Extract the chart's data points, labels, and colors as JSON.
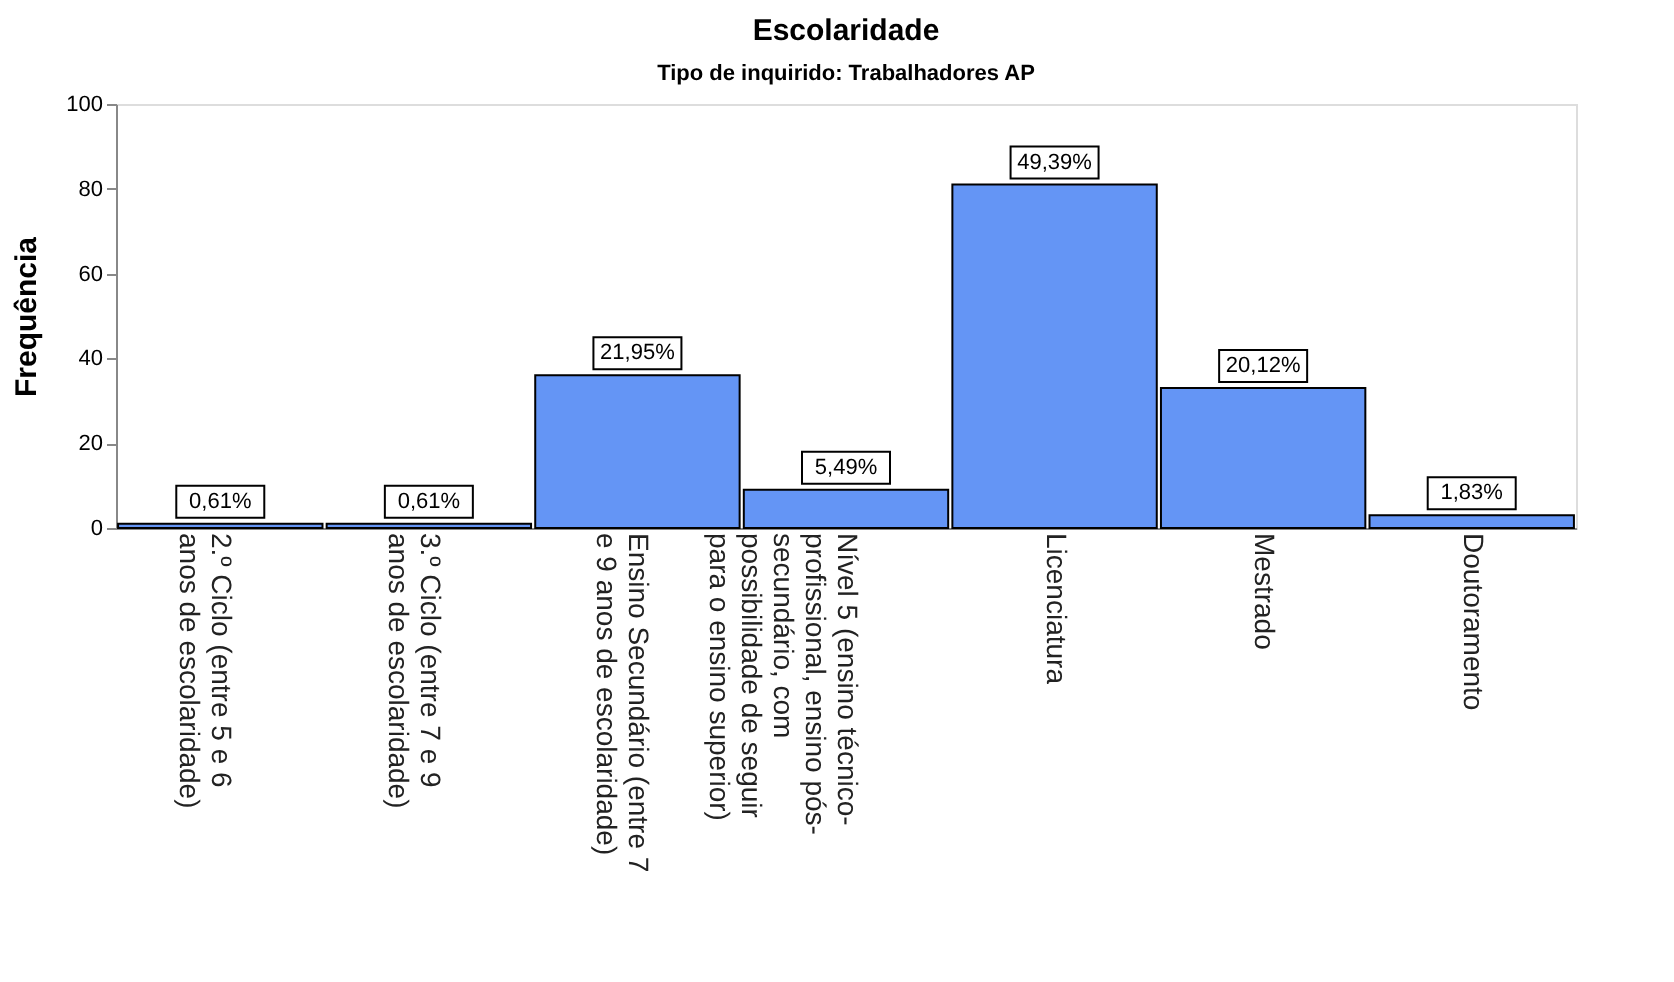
{
  "chart_data": {
    "type": "bar",
    "title": "Escolaridade",
    "subtitle": "Tipo de inquirido: Trabalhadores AP",
    "ylabel": "Frequência",
    "categories": [
      "2.º Ciclo (entre 5 e 6 anos de escolaridade)",
      "3.º Ciclo (entre 7 e 9 anos de escolaridade)",
      "Ensino Secundário (entre 7 e 9 anos de escolaridade)",
      "Nível 5 (ensino técnico-profissional, ensino pós-secundário, com possibilidade de seguir para o ensino superior)",
      "Licenciatura",
      "Mestrado",
      "Doutoramento"
    ],
    "values": [
      1,
      1,
      36,
      9,
      81,
      33,
      3
    ],
    "annotations": [
      {
        "text": "0,61%",
        "x": "2.º Ciclo (entre 5 e 6 anos de escolaridade)",
        "y": 1
      },
      {
        "text": "0,61%",
        "x": "3.º Ciclo (entre 7 e 9 anos de escolaridade)",
        "y": 1
      },
      {
        "text": "21,95%",
        "x": "Ensino Secundário (entre 7 e 9 anos de escolaridade)",
        "y": 36
      },
      {
        "text": "5,49%",
        "x": "Nível 5 (ensino técnico-profissional, ensino pós-secundário, com possibilidade de seguir para o ensino superior)",
        "y": 9
      },
      {
        "text": "49,39%",
        "x": "Licenciatura",
        "y": 81
      },
      {
        "text": "20,12%",
        "x": "Mestrado",
        "y": 33
      },
      {
        "text": "1,83%",
        "x": "Doutoramento",
        "y": 3
      }
    ],
    "color": "#6495f5",
    "ylim": [
      0,
      100
    ],
    "yticks": [
      0,
      20,
      40,
      60,
      80,
      100
    ],
    "grid": false
  }
}
